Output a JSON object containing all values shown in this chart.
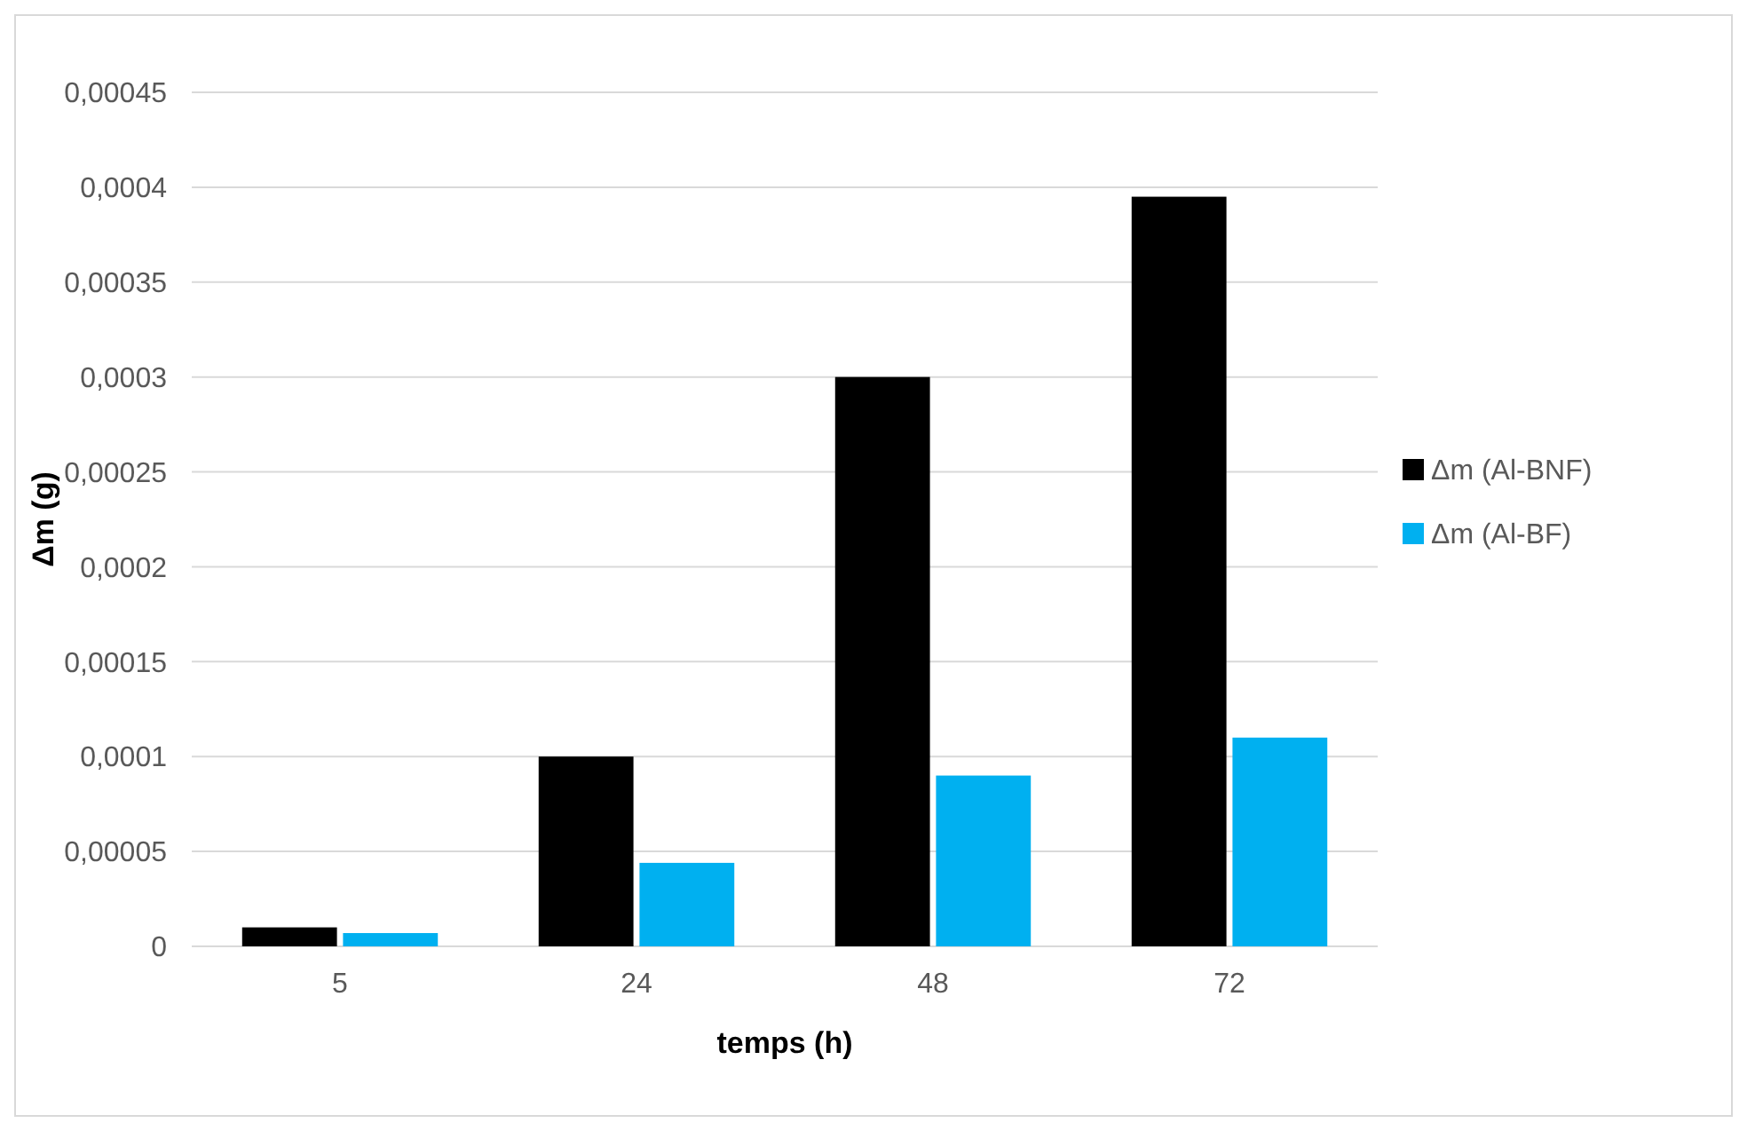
{
  "chart_data": {
    "type": "bar",
    "xlabel": "temps (h)",
    "ylabel": "Δm (g)",
    "categories": [
      "5",
      "24",
      "48",
      "72"
    ],
    "series": [
      {
        "name": "Δm (Al-BNF)",
        "color": "#000000",
        "values": [
          1e-05,
          0.0001,
          0.0003,
          0.000395
        ]
      },
      {
        "name": "Δm (Al-BF)",
        "color": "#00b0f0",
        "values": [
          7e-06,
          4.4e-05,
          9e-05,
          0.00011
        ]
      }
    ],
    "ylim": [
      0,
      0.00045
    ],
    "yticks": [
      {
        "value": 0,
        "label": "0"
      },
      {
        "value": 5e-05,
        "label": "0,00005"
      },
      {
        "value": 0.0001,
        "label": "0,0001"
      },
      {
        "value": 0.00015,
        "label": "0,00015"
      },
      {
        "value": 0.0002,
        "label": "0,0002"
      },
      {
        "value": 0.00025,
        "label": "0,00025"
      },
      {
        "value": 0.0003,
        "label": "0,0003"
      },
      {
        "value": 0.00035,
        "label": "0,00035"
      },
      {
        "value": 0.0004,
        "label": "0,0004"
      },
      {
        "value": 0.00045,
        "label": "0,00045"
      }
    ],
    "grid": "y",
    "legend": "right"
  }
}
